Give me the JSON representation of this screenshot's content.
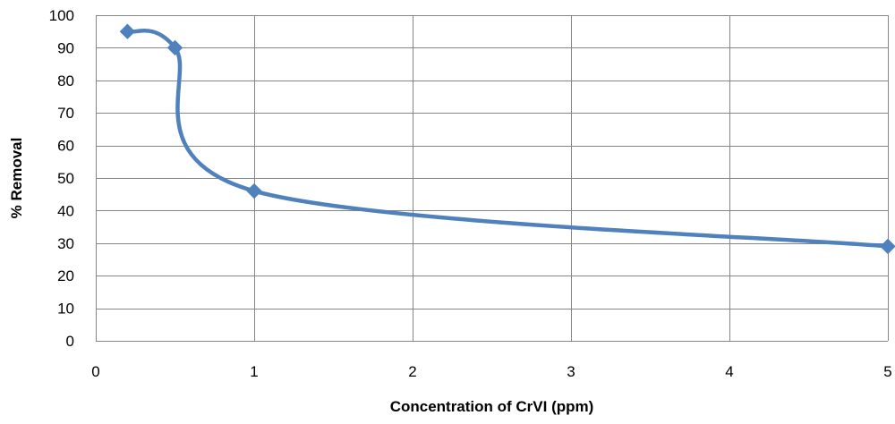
{
  "chart_data": {
    "type": "line",
    "title": "",
    "xlabel": "Concentration of CrVI (ppm)",
    "ylabel": "% Removal",
    "xlim": [
      0,
      5
    ],
    "ylim": [
      0,
      100
    ],
    "x_ticks": [
      0,
      1,
      2,
      3,
      4,
      5
    ],
    "y_ticks": [
      0,
      10,
      20,
      30,
      40,
      50,
      60,
      70,
      80,
      90,
      100
    ],
    "grid": true,
    "legend": "none",
    "smooth": true,
    "marker": "diamond",
    "series": [
      {
        "color": "#4F81BD",
        "points": [
          {
            "x": 0.2,
            "y": 95
          },
          {
            "x": 0.5,
            "y": 90
          },
          {
            "x": 1,
            "y": 46
          },
          {
            "x": 5,
            "y": 29
          }
        ]
      }
    ]
  }
}
